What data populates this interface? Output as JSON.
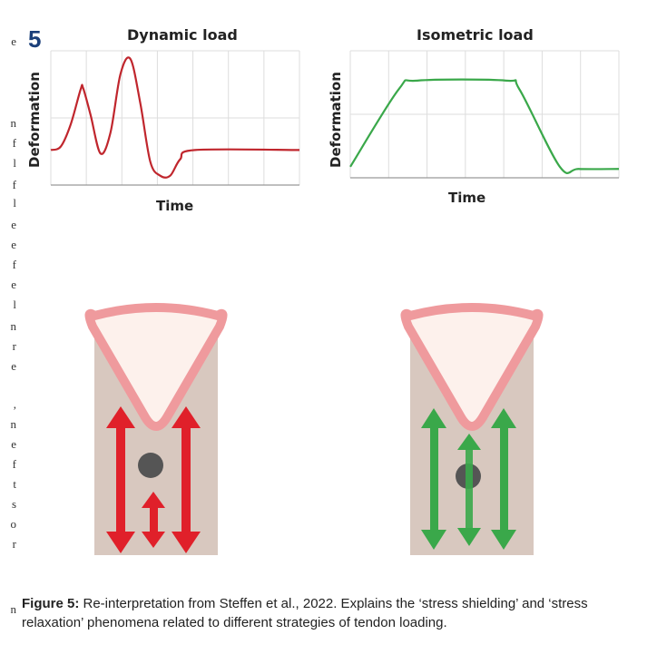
{
  "figure_number": "5",
  "chart_data": [
    {
      "type": "line",
      "title": "Dynamic load",
      "xlabel": "Time",
      "ylabel": "Deformation",
      "series": [
        {
          "values": [
            [
              0,
              0.2
            ],
            [
              0.04,
              0.23
            ],
            [
              0.08,
              0.42
            ],
            [
              0.12,
              0.72
            ],
            [
              0.13,
              0.73
            ],
            [
              0.16,
              0.5
            ],
            [
              0.2,
              0.17
            ],
            [
              0.24,
              0.35
            ],
            [
              0.28,
              0.85
            ],
            [
              0.32,
              0.98
            ],
            [
              0.36,
              0.6
            ],
            [
              0.4,
              0.1
            ],
            [
              0.44,
              -0.02
            ],
            [
              0.48,
              -0.02
            ],
            [
              0.52,
              0.12
            ],
            [
              0.58,
              0.2
            ],
            [
              1,
              0.2
            ]
          ]
        }
      ],
      "color": "#c0262d"
    },
    {
      "type": "line",
      "title": "Isometric load",
      "xlabel": "Time",
      "ylabel": "Deformation",
      "series": [
        {
          "values": [
            [
              0,
              0.0
            ],
            [
              0.18,
              0.7
            ],
            [
              0.25,
              0.78
            ],
            [
              0.58,
              0.78
            ],
            [
              0.63,
              0.7
            ],
            [
              0.78,
              0.0
            ],
            [
              0.85,
              -0.02
            ],
            [
              1,
              -0.02
            ]
          ]
        }
      ],
      "color": "#3aa84a"
    }
  ],
  "margin_text": [
    "e",
    "n",
    "f",
    "l",
    "f",
    "l",
    "e",
    "e",
    "f",
    "e",
    "l",
    "n",
    "r",
    "e",
    ",",
    "n",
    "e",
    "f",
    "t",
    "s",
    "o",
    "r",
    "n"
  ],
  "caption": {
    "label": "Figure 5:",
    "text": " Re-interpretation from Steffen et al., 2022. Explains the ‘stress shielding’ and ‘stress relaxation’ phenomena related to different strategies of tendon loading."
  },
  "colors": {
    "tendon_bg": "#d8c8bf",
    "triangle_stroke": "#ef9a9d",
    "dot": "#555555",
    "red_arrow": "#e0202a",
    "green_arrow": "#3aa84a",
    "figure_number": "#1b3f7a"
  }
}
